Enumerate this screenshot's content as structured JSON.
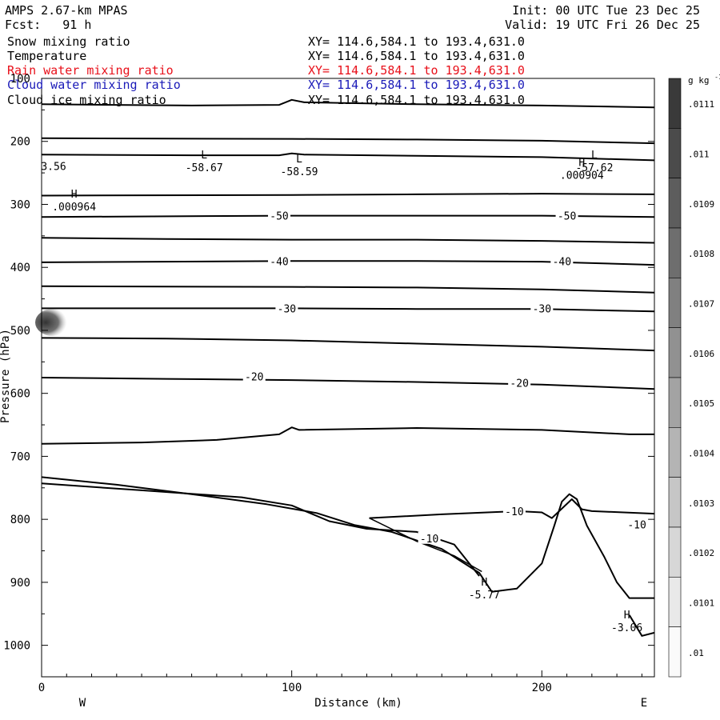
{
  "header": {
    "model": "AMPS 2.67-km MPAS",
    "init": "Init: 00 UTC Tue 23 Dec 25",
    "fcst": "Fcst:   91 h",
    "valid": "Valid: 19 UTC Fri 26 Dec 25",
    "fields": [
      {
        "name": "Snow mixing ratio",
        "xy": "XY= 114.6,584.1 to 193.4,631.0",
        "color": "#000000"
      },
      {
        "name": "Temperature",
        "xy": "XY= 114.6,584.1 to 193.4,631.0",
        "color": "#000000"
      },
      {
        "name": "Rain water mixing ratio",
        "xy": "XY= 114.6,584.1 to 193.4,631.0",
        "color": "#e8101a"
      },
      {
        "name": "Cloud water mixing ratio",
        "xy": "XY= 114.6,584.1 to 193.4,631.0",
        "color": "#1a1ab8"
      },
      {
        "name": "Cloud ice mixing ratio",
        "xy": "XY= 114.6,584.1 to 193.4,631.0",
        "color": "#000000"
      }
    ]
  },
  "chart_data": {
    "type": "contour",
    "xlabel": "Distance (km)",
    "ylabel": "Pressure (hPa)",
    "xlim": [
      0,
      245
    ],
    "ylim": [
      1050,
      100
    ],
    "x_ticks": [
      "0",
      "100",
      "200"
    ],
    "y_ticks": [
      "100",
      "200",
      "300",
      "400",
      "500",
      "600",
      "700",
      "800",
      "900",
      "1000"
    ],
    "left_end_label": "W",
    "right_end_label": "E",
    "colorbar": {
      "unit_base": "g kg",
      "unit_exp": "-1",
      "ticks": [
        ".0111",
        ".011",
        ".0109",
        ".0108",
        ".0107",
        ".0106",
        ".0105",
        ".0104",
        ".0103",
        ".0102",
        ".0101",
        ".01"
      ]
    },
    "contour_labels": [
      {
        "text": "-50",
        "x": 95,
        "p": 318
      },
      {
        "text": "-50",
        "x": 210,
        "p": 318
      },
      {
        "text": "-40",
        "x": 95,
        "p": 390
      },
      {
        "text": "-40",
        "x": 208,
        "p": 390
      },
      {
        "text": "-30",
        "x": 98,
        "p": 465
      },
      {
        "text": "-30",
        "x": 200,
        "p": 465
      },
      {
        "text": "-20",
        "x": 85,
        "p": 573
      },
      {
        "text": "-20",
        "x": 191,
        "p": 583
      },
      {
        "text": "-10",
        "x": 189,
        "p": 787
      },
      {
        "text": "-10",
        "x": 238,
        "p": 808
      },
      {
        "text": "-10",
        "x": 155,
        "p": 830
      }
    ],
    "extrema": [
      {
        "type": "L",
        "value": "-58.67",
        "x": 65,
        "p": 240
      },
      {
        "type": "L",
        "value": "-58.59",
        "x": 103,
        "p": 246
      },
      {
        "type": "L",
        "value": "-57.62",
        "x": 221,
        "p": 240
      },
      {
        "type": "H",
        "value": ".000904",
        "x": 216,
        "p": 252
      },
      {
        "type": "H",
        "value": ".000964",
        "x": 13,
        "p": 302
      },
      {
        "type": "H",
        "value": "-5.77",
        "x": 177,
        "p": 918
      },
      {
        "type": "H",
        "value": "-3.06",
        "x": 234,
        "p": 970
      }
    ],
    "partial_label": "3.56",
    "isotherms": [
      {
        "x": [
          0,
          60,
          95,
          100,
          105,
          150,
          200,
          245
        ],
        "p": [
          141,
          143,
          142,
          134,
          138,
          141,
          143,
          146
        ]
      },
      {
        "x": [
          0,
          100,
          150,
          200,
          245
        ],
        "p": [
          195,
          196,
          197,
          199,
          203
        ]
      },
      {
        "x": [
          0,
          60,
          95,
          100,
          105,
          150,
          200,
          245
        ],
        "p": [
          221,
          222,
          222,
          219,
          221,
          223,
          225,
          230
        ]
      },
      {
        "x": [
          0,
          100,
          150,
          200,
          245
        ],
        "p": [
          286,
          285,
          284,
          283,
          284
        ]
      },
      {
        "x": [
          0,
          100,
          150,
          200,
          245
        ],
        "p": [
          320,
          318,
          318,
          318,
          320
        ]
      },
      {
        "x": [
          0,
          50,
          100,
          150,
          200,
          245
        ],
        "p": [
          353,
          355,
          356,
          356,
          358,
          361
        ]
      },
      {
        "x": [
          0,
          100,
          150,
          200,
          245
        ],
        "p": [
          392,
          390,
          390,
          391,
          396
        ]
      },
      {
        "x": [
          0,
          100,
          150,
          200,
          245
        ],
        "p": [
          430,
          431,
          432,
          435,
          440
        ]
      },
      {
        "x": [
          0,
          100,
          150,
          200,
          245
        ],
        "p": [
          465,
          465,
          466,
          466,
          470
        ]
      },
      {
        "x": [
          0,
          50,
          100,
          150,
          200,
          245
        ],
        "p": [
          512,
          513,
          516,
          521,
          526,
          532
        ]
      },
      {
        "x": [
          0,
          50,
          100,
          150,
          200,
          245
        ],
        "p": [
          575,
          577,
          579,
          582,
          586,
          593
        ]
      },
      {
        "x": [
          0,
          40,
          70,
          95,
          100,
          103,
          150,
          200,
          235,
          245
        ],
        "p": [
          680,
          678,
          674,
          665,
          654,
          658,
          655,
          658,
          665,
          665
        ]
      },
      {
        "x": [
          131,
          160,
          190,
          200,
          204,
          212,
          216,
          220,
          245
        ],
        "p": [
          798,
          792,
          787,
          789,
          798,
          768,
          784,
          787,
          791
        ]
      }
    ],
    "terrain": [
      {
        "x": [
          0,
          30,
          60,
          90,
          110,
          125,
          140,
          160,
          175,
          180,
          190,
          200,
          205,
          208,
          211,
          214,
          218,
          225,
          230,
          235,
          245
        ],
        "p": [
          733,
          745,
          760,
          776,
          790,
          809,
          820,
          847,
          885,
          915,
          910,
          870,
          810,
          772,
          760,
          768,
          810,
          860,
          900,
          925,
          925
        ]
      },
      {
        "x": [
          0,
          40,
          80,
          100,
          115,
          130,
          150,
          165,
          175
        ],
        "p": [
          743,
          754,
          765,
          778,
          803,
          815,
          820,
          840,
          890
        ]
      }
    ],
    "fold": {
      "x": [
        131,
        150,
        165,
        176
      ],
      "p": [
        798,
        835,
        858,
        883
      ]
    },
    "coast": {
      "x": [
        235,
        240,
        245
      ],
      "p": [
        952,
        985,
        980
      ]
    }
  }
}
